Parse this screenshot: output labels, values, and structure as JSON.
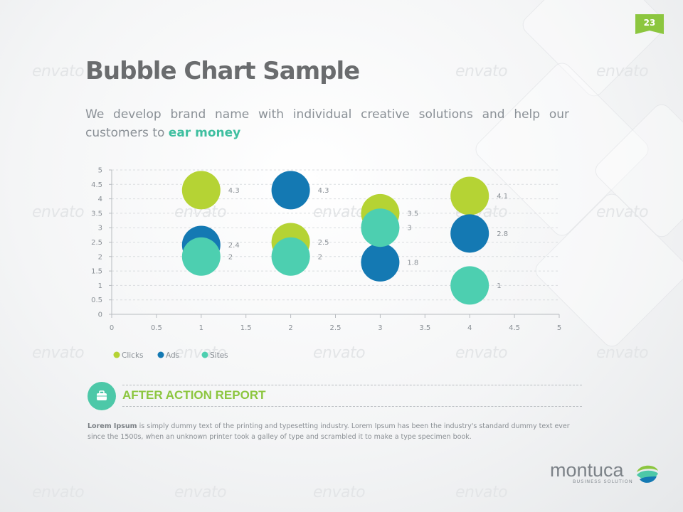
{
  "page_number": "23",
  "title": "Bubble Chart Sample",
  "subtitle": {
    "text": "We develop brand name with individual creative solutions and help our customers to ",
    "highlight": "ear money"
  },
  "watermark": "envato",
  "chart_data": {
    "type": "scatter",
    "bubble": true,
    "xlim": [
      0,
      5
    ],
    "ylim": [
      0,
      5
    ],
    "x_ticks": [
      "0",
      "0.5",
      "1",
      "1.5",
      "2",
      "2.5",
      "3",
      "3.5",
      "4",
      "4.5",
      "5"
    ],
    "y_ticks": [
      "0",
      "0.5",
      "1",
      "1.5",
      "2",
      "2.5",
      "3",
      "3.5",
      "4",
      "4.5",
      "5"
    ],
    "grid": true,
    "legend_position": "bottom-left",
    "series": [
      {
        "name": "Clicks",
        "color": "#b5d334",
        "points": [
          [
            1,
            4.3,
            "4.3"
          ],
          [
            2,
            2.5,
            "2.5"
          ],
          [
            3,
            3.5,
            "3.5"
          ],
          [
            4,
            4.1,
            "4.1"
          ]
        ]
      },
      {
        "name": "Ads",
        "color": "#1479b3",
        "points": [
          [
            1,
            2.4,
            "2.4"
          ],
          [
            2,
            4.3,
            "4.3"
          ],
          [
            3,
            1.8,
            "1.8"
          ],
          [
            4,
            2.8,
            "2.8"
          ]
        ]
      },
      {
        "name": "Sites",
        "color": "#4dcfb0",
        "points": [
          [
            1,
            2,
            "2"
          ],
          [
            2,
            2,
            "2"
          ],
          [
            3,
            3,
            "3"
          ],
          [
            4,
            1,
            "1"
          ]
        ]
      }
    ]
  },
  "section": {
    "title": "AFTER ACTION REPORT",
    "icon": "briefcase-icon",
    "accent": "#8cc63f",
    "icon_bg": "#4dc8a8"
  },
  "body": {
    "lead": "Lorem Ipsum",
    "text": " is simply dummy text of the printing and typesetting industry. Lorem Ipsum has been the industry's standard dummy text ever since the 1500s, when an unknown printer took a galley of type and scrambled it to make a type specimen book."
  },
  "logo": {
    "name": "montuca",
    "tagline": "BUSINESS SOLUTION"
  }
}
